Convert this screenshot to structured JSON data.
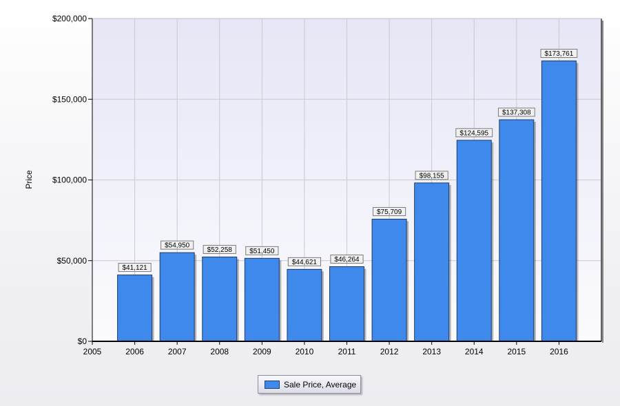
{
  "chart_data": {
    "type": "bar",
    "categories": [
      "2006",
      "2007",
      "2008",
      "2009",
      "2010",
      "2011",
      "2012",
      "2013",
      "2014",
      "2015",
      "2016"
    ],
    "values": [
      41121,
      54950,
      52258,
      51450,
      44621,
      46264,
      75709,
      98155,
      124595,
      137308,
      173761
    ],
    "value_labels": [
      "$41,121",
      "$54,950",
      "$52,258",
      "$51,450",
      "$44,621",
      "$46,264",
      "$75,709",
      "$98,155",
      "$124,595",
      "$137,308",
      "$173,761"
    ],
    "xlim": [
      2005,
      2017
    ],
    "x_ticks": [
      "2005",
      "2006",
      "2007",
      "2008",
      "2009",
      "2010",
      "2011",
      "2012",
      "2013",
      "2014",
      "2015",
      "2016"
    ],
    "ylim": [
      0,
      200000
    ],
    "y_ticks": [
      {
        "value": 0,
        "label": "$0"
      },
      {
        "value": 50000,
        "label": "$50,000"
      },
      {
        "value": 100000,
        "label": "$100,000"
      },
      {
        "value": 150000,
        "label": "$150,000"
      },
      {
        "value": 200000,
        "label": "$200,000"
      }
    ],
    "ylabel": "Price",
    "grid": true,
    "legend": {
      "position": "bottom-center",
      "label": "Sale Price, Average"
    },
    "colors": {
      "bar": "#3f89ec",
      "bar_edge": "#1d3a6a",
      "plot_top": "#e6e6f6",
      "plot_bottom": "#fbfbfe",
      "grid": "#c8c8d4"
    }
  }
}
